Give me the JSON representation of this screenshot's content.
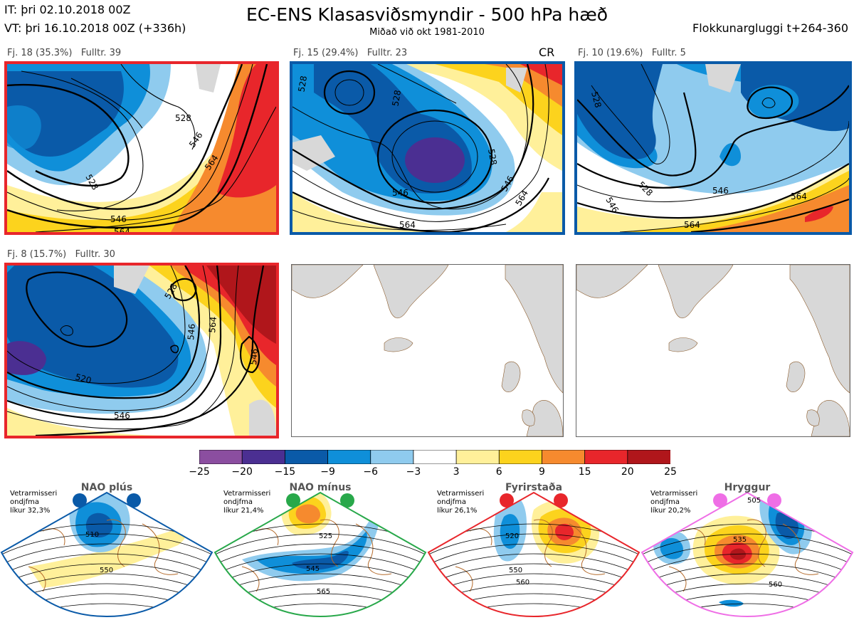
{
  "header": {
    "it": "IT: þri 02.10.2018 00Z",
    "vt": "VT: þri 16.10.2018 00Z  (+336h)",
    "title": "EC-ENS Klasasviðsmyndir - 500 hPa hæð",
    "subtitle": "Miðað við okt 1981-2010",
    "window": "Flokkunargluggi t+264-360"
  },
  "panels": [
    {
      "label": "Fj. 18 (35.3%)",
      "rep": "Fulltr. 39",
      "border": "#e8262b",
      "contours": [
        "528",
        "546",
        "564",
        "546",
        "564",
        "528"
      ]
    },
    {
      "label": "Fj. 15 (29.4%)",
      "rep": "Fulltr. 23",
      "extra": "CR",
      "border": "#0a5aa8",
      "contours": [
        "528",
        "528",
        "546",
        "564",
        "546",
        "564",
        "528"
      ]
    },
    {
      "label": "Fj. 10 (19.6%)",
      "rep": "Fulltr. 5",
      "border": "#0a5aa8",
      "contours": [
        "528",
        "546",
        "546",
        "564",
        "564",
        "528"
      ]
    },
    {
      "label": "Fj. 8 (15.7%)",
      "rep": "Fulltr. 30",
      "border": "#e8262b",
      "contours": [
        "528",
        "546",
        "564",
        "546",
        "520",
        "546"
      ]
    }
  ],
  "colorbar": {
    "ticks": [
      "−25",
      "−20",
      "−15",
      "−9",
      "−6",
      "−3",
      "3",
      "6",
      "9",
      "15",
      "20",
      "25"
    ],
    "colors": [
      "#8b4ea0",
      "#4b2f92",
      "#0a5aa8",
      "#0f8fd9",
      "#8fcbee",
      "#ffffff",
      "#fff09a",
      "#fcd31d",
      "#f68a2e",
      "#e8262b",
      "#b0161b"
    ]
  },
  "regimes": [
    {
      "title": "NAO plús",
      "note": "Vetrarmisseri\nondjfma\nlíkur 32,3%",
      "color": "#0a5aa8",
      "contours": [
        "510",
        "550"
      ]
    },
    {
      "title": "NAO mínus",
      "note": "Vetrarmisseri\nondjfma\nlíkur 21,4%",
      "color": "#28a84a",
      "contours": [
        "525",
        "545",
        "565"
      ]
    },
    {
      "title": "Fyrirstaða",
      "note": "Vetrarmisseri\nondjfma\nlíkur 26,1%",
      "color": "#e8262b",
      "contours": [
        "520",
        "550",
        "560"
      ]
    },
    {
      "title": "Hryggur",
      "note": "Vetrarmisseri\nondjfma\nlíkur 20,2%",
      "color": "#ef6ee6",
      "contours": [
        "505",
        "535",
        "560"
      ]
    }
  ]
}
